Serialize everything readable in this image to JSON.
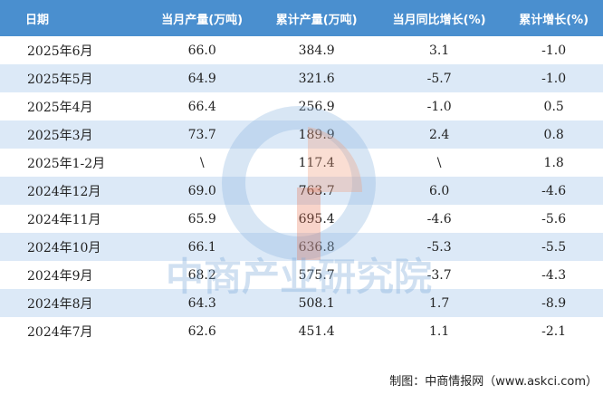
{
  "table": {
    "header": [
      "日期",
      "当月产量(万吨)",
      "累计产量(万吨)",
      "当月同比增长(%)",
      "累计增长(%)"
    ],
    "rows": [
      [
        "2025年6月",
        "66.0",
        "384.9",
        "3.1",
        "-1.0"
      ],
      [
        "2025年5月",
        "64.9",
        "321.6",
        "-5.7",
        "-1.0"
      ],
      [
        "2025年4月",
        "66.4",
        "256.9",
        "-1.0",
        "0.5"
      ],
      [
        "2025年3月",
        "73.7",
        "189.9",
        "2.4",
        "0.8"
      ],
      [
        "2025年1-2月",
        "\\",
        "117.4",
        "\\",
        "1.8"
      ],
      [
        "2024年12月",
        "69.0",
        "763.7",
        "6.0",
        "-4.6"
      ],
      [
        "2024年11月",
        "65.9",
        "695.4",
        "-4.6",
        "-5.6"
      ],
      [
        "2024年10月",
        "66.1",
        "636.8",
        "-5.3",
        "-5.5"
      ],
      [
        "2024年9月",
        "68.2",
        "575.7",
        "-3.7",
        "-4.3"
      ],
      [
        "2024年8月",
        "64.3",
        "508.1",
        "1.7",
        "-8.9"
      ],
      [
        "2024年7月",
        "62.6",
        "451.4",
        "1.1",
        "-2.1"
      ]
    ]
  },
  "watermark": "中商产业研究院",
  "footer": "制图：中商情报网（www.askci.com）"
}
